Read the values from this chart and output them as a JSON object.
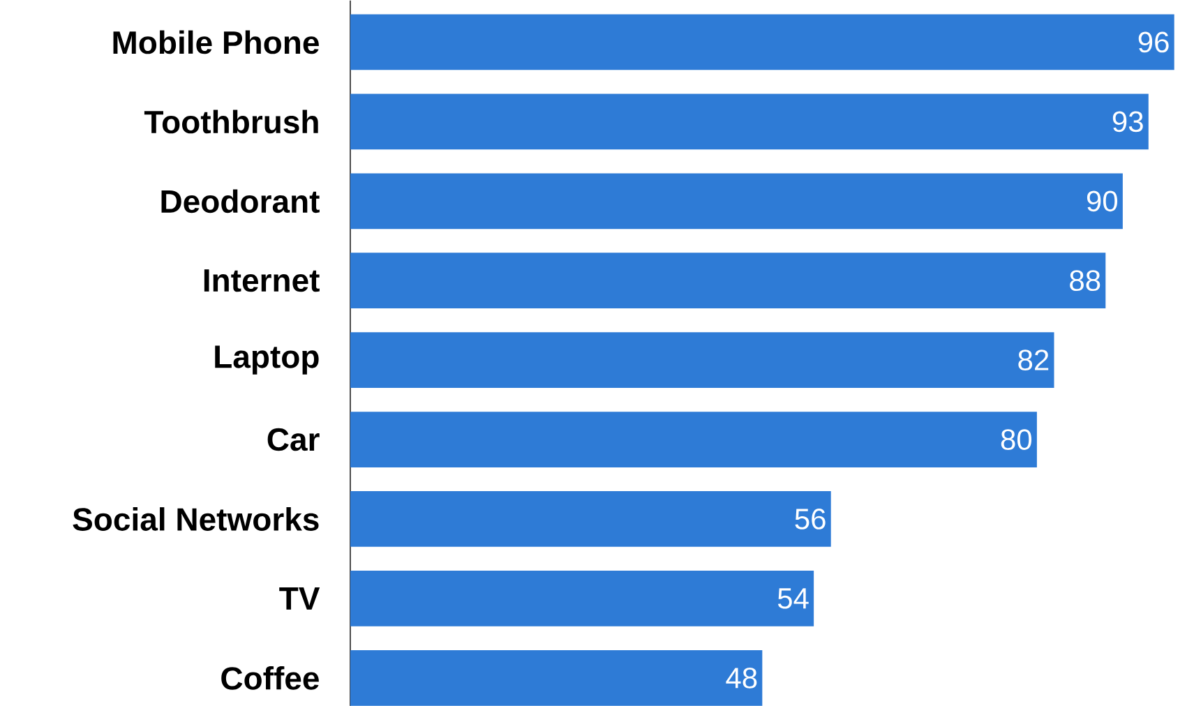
{
  "chart_data": {
    "type": "bar",
    "orientation": "horizontal",
    "categories": [
      "Mobile Phone",
      "Toothbrush",
      "Deodorant",
      "Internet",
      "Laptop",
      "Car",
      "Social Networks",
      "TV",
      "Coffee"
    ],
    "values": [
      96,
      93,
      90,
      88,
      82,
      80,
      56,
      54,
      48
    ],
    "color": "#2e7bd6",
    "data_labels": true
  }
}
